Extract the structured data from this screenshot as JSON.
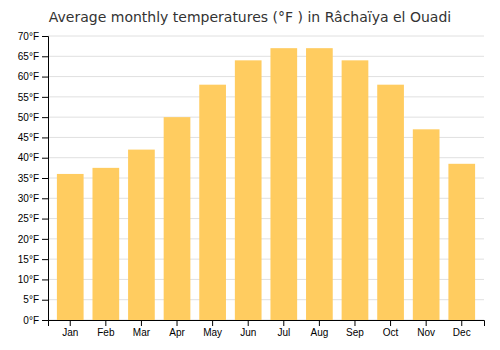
{
  "chart_data": {
    "type": "bar",
    "title": "Average monthly temperatures (°F ) in Râchaïya el Ouadi",
    "categories": [
      "Jan",
      "Feb",
      "Mar",
      "Apr",
      "May",
      "Jun",
      "Jul",
      "Aug",
      "Sep",
      "Oct",
      "Nov",
      "Dec"
    ],
    "values": [
      36,
      37.5,
      42,
      50,
      58,
      64,
      67,
      67,
      64,
      58,
      47,
      38.5
    ],
    "color": "#FFCC60",
    "ylim": [
      0,
      70
    ],
    "yticks": [
      {
        "value": 0,
        "label": "0°F"
      },
      {
        "value": 5,
        "label": "5°F"
      },
      {
        "value": 10,
        "label": "10°F"
      },
      {
        "value": 15,
        "label": "15°F"
      },
      {
        "value": 20,
        "label": "20°F"
      },
      {
        "value": 25,
        "label": "25°F"
      },
      {
        "value": 30,
        "label": "30°F"
      },
      {
        "value": 35,
        "label": "35°F"
      },
      {
        "value": 40,
        "label": "40°F"
      },
      {
        "value": 45,
        "label": "45°F"
      },
      {
        "value": 50,
        "label": "50°F"
      },
      {
        "value": 55,
        "label": "55°F"
      },
      {
        "value": 60,
        "label": "60°F"
      },
      {
        "value": 65,
        "label": "65°F"
      },
      {
        "value": 70,
        "label": "70°F"
      }
    ],
    "grid": true
  }
}
